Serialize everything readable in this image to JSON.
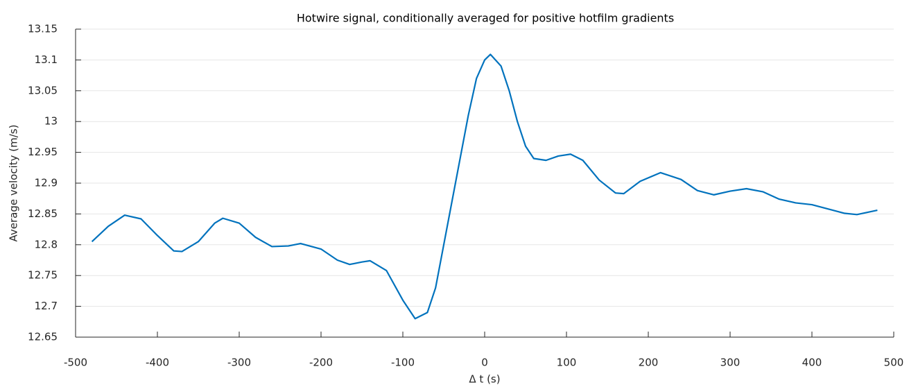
{
  "chart_data": {
    "type": "line",
    "title": "Hotwire signal, conditionally averaged for positive hotfilm gradients",
    "x_label": "Δ t (s)",
    "y_label": "Average velocity (m/s)",
    "x": [
      -480,
      -460,
      -440,
      -420,
      -400,
      -380,
      -370,
      -350,
      -330,
      -320,
      -300,
      -280,
      -260,
      -240,
      -225,
      -200,
      -180,
      -165,
      -150,
      -140,
      -120,
      -100,
      -85,
      -70,
      -60,
      -50,
      -40,
      -30,
      -20,
      -10,
      0,
      7,
      20,
      30,
      40,
      50,
      60,
      75,
      90,
      105,
      120,
      140,
      160,
      170,
      190,
      215,
      240,
      260,
      280,
      300,
      320,
      340,
      360,
      380,
      400,
      420,
      440,
      455,
      480
    ],
    "series": [
      {
        "name": "Average velocity",
        "color": "#0072bd",
        "values": [
          12.805,
          12.83,
          12.848,
          12.842,
          12.815,
          12.79,
          12.789,
          12.805,
          12.835,
          12.843,
          12.835,
          12.812,
          12.797,
          12.798,
          12.802,
          12.793,
          12.775,
          12.768,
          12.772,
          12.774,
          12.758,
          12.71,
          12.68,
          12.69,
          12.73,
          12.8,
          12.87,
          12.94,
          13.01,
          13.07,
          13.1,
          13.109,
          13.09,
          13.05,
          13.0,
          12.96,
          12.94,
          12.937,
          12.944,
          12.947,
          12.937,
          12.905,
          12.884,
          12.883,
          12.903,
          12.917,
          12.906,
          12.888,
          12.881,
          12.887,
          12.891,
          12.886,
          12.874,
          12.868,
          12.865,
          12.858,
          12.851,
          12.849,
          12.856
        ]
      }
    ],
    "xlim": [
      -500,
      500
    ],
    "xticks": [
      -500,
      -400,
      -300,
      -200,
      -100,
      0,
      100,
      200,
      300,
      400,
      500
    ],
    "ylim": [
      12.65,
      13.15
    ],
    "yticks": [
      12.65,
      12.7,
      12.75,
      12.8,
      12.85,
      12.9,
      12.95,
      13,
      13.05,
      13.1,
      13.15
    ],
    "ygrid": true
  }
}
